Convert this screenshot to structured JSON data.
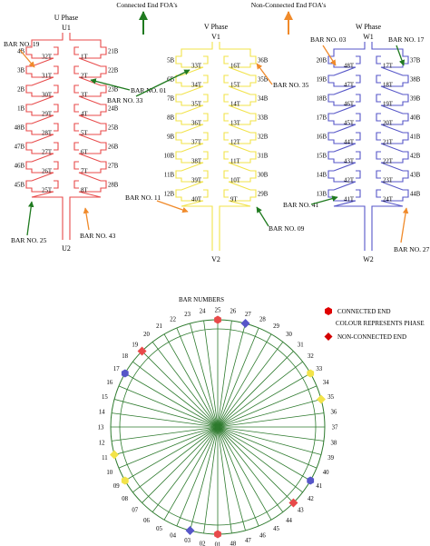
{
  "legend_top": {
    "connected": "Connected End FOA's",
    "non_connected": "Non-Connected End FOA's"
  },
  "colors": {
    "u_phase": "#e84a4a",
    "v_phase": "#f2e34a",
    "w_phase": "#5656c8",
    "connected_arrow": "#1f7a1f",
    "non_connected_arrow": "#f08a2a",
    "circle_lines": "#2d7a2d",
    "connected_marker": "#e00000",
    "non_connected_marker": "#d40000"
  },
  "phases": [
    {
      "name": "U Phase",
      "top": "U1",
      "bottom": "U2",
      "left_outer": [
        "4B",
        "3B",
        "2B",
        "1B",
        "48B",
        "47B",
        "46B",
        "45B"
      ],
      "left_inner": [
        "32T",
        "31T",
        "30T",
        "29T",
        "28T",
        "27T",
        "26T",
        "25T"
      ],
      "right_inner": [
        "1T",
        "2T",
        "3T",
        "4T",
        "5T",
        "6T",
        "7T",
        "8T"
      ],
      "right_outer": [
        "21B",
        "22B",
        "23B",
        "24B",
        "25B",
        "26B",
        "27B",
        "28B"
      ]
    },
    {
      "name": "V Phase",
      "top": "V1",
      "bottom": "V2",
      "left_outer": [
        "5B",
        "6B",
        "7B",
        "8B",
        "9B",
        "10B",
        "11B",
        "12B"
      ],
      "left_inner": [
        "33T",
        "34T",
        "35T",
        "36T",
        "37T",
        "38T",
        "39T",
        "40T"
      ],
      "right_inner": [
        "16T",
        "15T",
        "14T",
        "13T",
        "12T",
        "11T",
        "10T",
        "9T"
      ],
      "right_outer": [
        "36B",
        "35B",
        "34B",
        "33B",
        "32B",
        "31B",
        "30B",
        "29B"
      ]
    },
    {
      "name": "W Phase",
      "top": "W1",
      "bottom": "W2",
      "left_outer": [
        "20B",
        "19B",
        "18B",
        "17B",
        "16B",
        "15B",
        "14B",
        "13B"
      ],
      "left_inner": [
        "48T",
        "47T",
        "46T",
        "45T",
        "44T",
        "43T",
        "42T",
        "41T"
      ],
      "right_inner": [
        "17T",
        "18T",
        "19T",
        "20T",
        "21T",
        "22T",
        "23T",
        "24T"
      ],
      "right_outer": [
        "37B",
        "38B",
        "39B",
        "40B",
        "41B",
        "42B",
        "43B",
        "44B"
      ]
    }
  ],
  "bar_callouts": [
    {
      "text": "BAR NO. 19",
      "kind": "non-connected"
    },
    {
      "text": "BAR NO. 01",
      "kind": "connected"
    },
    {
      "text": "BAR NO. 33",
      "kind": "connected"
    },
    {
      "text": "BAR NO. 35",
      "kind": "non-connected"
    },
    {
      "text": "BAR NO. 03",
      "kind": "non-connected"
    },
    {
      "text": "BAR NO. 17",
      "kind": "connected"
    },
    {
      "text": "BAR NO. 25",
      "kind": "connected"
    },
    {
      "text": "BAR NO. 43",
      "kind": "non-connected"
    },
    {
      "text": "BAR NO. 11",
      "kind": "non-connected"
    },
    {
      "text": "BAR NO. 41",
      "kind": "connected"
    },
    {
      "text": "BAR NO. 09",
      "kind": "connected"
    },
    {
      "text": "BAR NO. 27",
      "kind": "non-connected"
    }
  ],
  "circle": {
    "title": "BAR NUMBERS",
    "bar_labels": [
      "25",
      "26",
      "27",
      "28",
      "29",
      "30",
      "31",
      "32",
      "33",
      "34",
      "35",
      "36",
      "37",
      "38",
      "39",
      "40",
      "41",
      "42",
      "43",
      "44",
      "45",
      "46",
      "47",
      "48",
      "01",
      "02",
      "03",
      "04",
      "05",
      "06",
      "07",
      "08",
      "09",
      "10",
      "11",
      "12",
      "13",
      "14",
      "15",
      "16",
      "17",
      "18",
      "19",
      "20",
      "21",
      "22",
      "23",
      "24"
    ],
    "markers": [
      {
        "bar": "25",
        "shape": "hexagon",
        "phase": "u_phase"
      },
      {
        "bar": "01",
        "shape": "hexagon",
        "phase": "u_phase"
      },
      {
        "bar": "27",
        "shape": "diamond",
        "phase": "w_phase"
      },
      {
        "bar": "03",
        "shape": "diamond",
        "phase": "w_phase"
      },
      {
        "bar": "17",
        "shape": "hexagon",
        "phase": "w_phase"
      },
      {
        "bar": "41",
        "shape": "hexagon",
        "phase": "w_phase"
      },
      {
        "bar": "19",
        "shape": "diamond",
        "phase": "u_phase"
      },
      {
        "bar": "43",
        "shape": "diamond",
        "phase": "u_phase"
      },
      {
        "bar": "33",
        "shape": "hexagon",
        "phase": "v_phase"
      },
      {
        "bar": "09",
        "shape": "hexagon",
        "phase": "v_phase"
      },
      {
        "bar": "35",
        "shape": "diamond",
        "phase": "v_phase"
      },
      {
        "bar": "11",
        "shape": "diamond",
        "phase": "v_phase"
      }
    ]
  },
  "legend_bottom": {
    "connected": "CONNECTED END",
    "colour_note": "COLOUR REPRESENTS PHASE",
    "non_connected": "NON-CONNECTED END"
  }
}
